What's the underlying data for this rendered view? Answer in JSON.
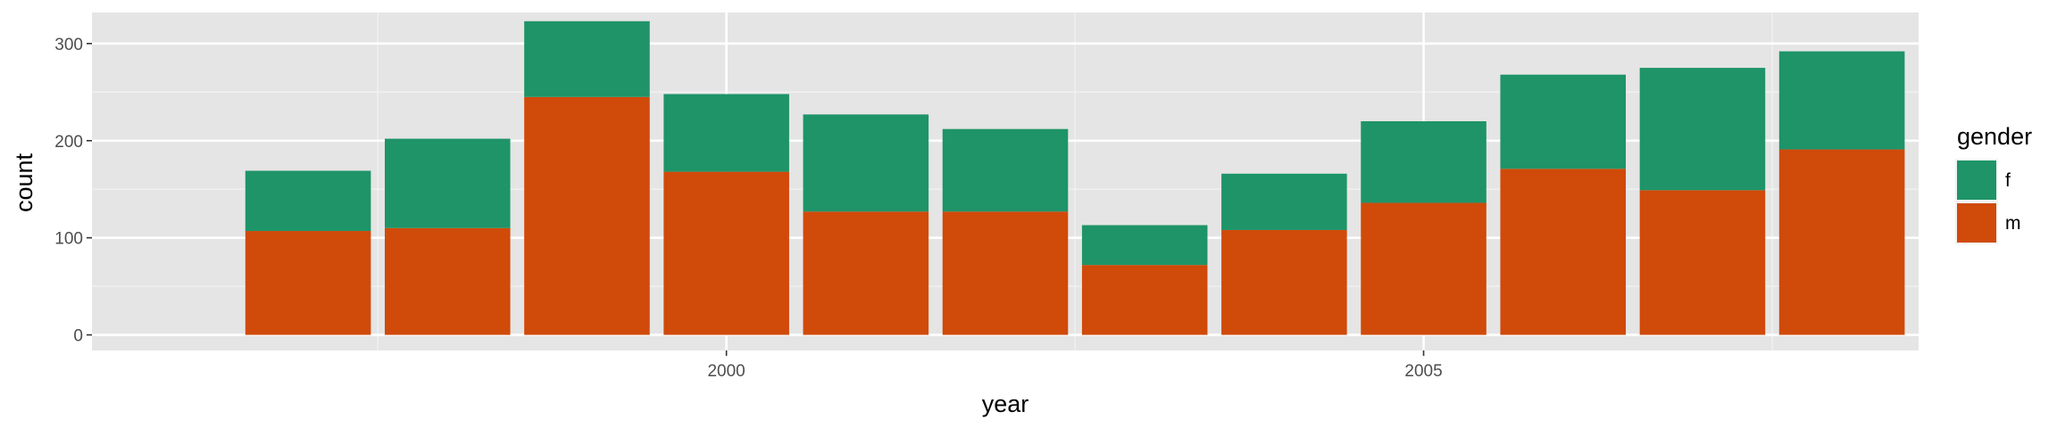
{
  "chart_data": {
    "type": "bar",
    "stacked": true,
    "x": [
      1997,
      1998,
      1999,
      2000,
      2001,
      2002,
      2003,
      2004,
      2005,
      2006,
      2007,
      2008
    ],
    "series": [
      {
        "name": "m",
        "color": "#d04a0a",
        "values": [
          107,
          110,
          245,
          168,
          127,
          127,
          72,
          108,
          136,
          171,
          149,
          191
        ]
      },
      {
        "name": "f",
        "color": "#1e9468",
        "values": [
          62,
          92,
          78,
          80,
          100,
          85,
          41,
          58,
          84,
          97,
          126,
          101
        ]
      }
    ],
    "xlabel": "year",
    "ylabel": "count",
    "xticks": [
      "2000",
      "2005"
    ],
    "xtick_values": [
      2000,
      2005
    ],
    "yticks": [
      "0",
      "100",
      "200",
      "300"
    ],
    "ytick_values": [
      0,
      100,
      200,
      300
    ],
    "xlim": [
      1995.45,
      2008.55
    ],
    "ylim": [
      -16,
      332
    ],
    "grid": true,
    "panel_background": "#e5e5e5",
    "legend": {
      "title": "gender",
      "position": "right",
      "entries": [
        "f",
        "m"
      ]
    }
  }
}
